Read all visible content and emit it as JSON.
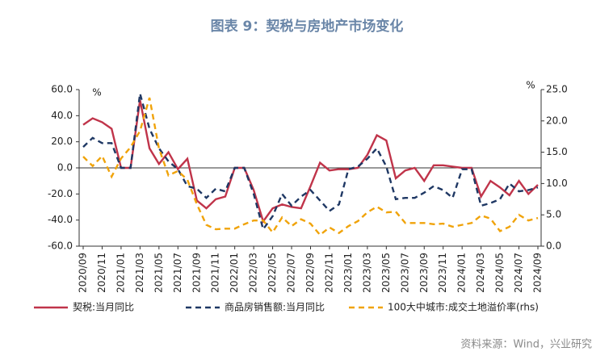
{
  "chart_data": {
    "type": "line",
    "title": "图表 9：契税与房地产市场变化",
    "y_unit": "%",
    "y2_unit": "%",
    "source": "资料来源：Wind，兴业研究",
    "categories": [
      "2020/09",
      null,
      "2020/11",
      null,
      "2021/01",
      null,
      "2021/03",
      null,
      "2021/05",
      null,
      "2021/07",
      null,
      "2021/09",
      null,
      "2021/11",
      null,
      "2022/01",
      null,
      "2022/03",
      null,
      "2022/05",
      null,
      "2022/07",
      null,
      "2022/09",
      null,
      "2022/11",
      null,
      "2023/01",
      null,
      "2023/03",
      null,
      "2023/05",
      null,
      "2023/07",
      null,
      "2023/09",
      null,
      "2023/11",
      null,
      "2024/01",
      null,
      "2024/03",
      null,
      "2024/05",
      null,
      "2024/07",
      null,
      "2024/09"
    ],
    "series": [
      {
        "name": "契税:当月同比",
        "color": "#c0344a",
        "dash": "solid",
        "values": [
          33,
          38,
          35,
          30,
          0,
          0,
          52,
          15,
          3,
          12,
          -1,
          7,
          -25,
          -31,
          -24,
          -22,
          0,
          0,
          -17,
          -41,
          -31,
          -28,
          -30,
          -31,
          -14,
          4,
          -2,
          -1,
          -1,
          0,
          10,
          25,
          21,
          -8,
          -2,
          0,
          -10,
          2,
          2,
          1,
          0,
          0,
          -22,
          -10,
          -15,
          -21,
          -10,
          -20,
          -13
        ]
      },
      {
        "name": "商品房销售额:当月同比",
        "color": "#1f3864",
        "dash": "dashed",
        "values": [
          16,
          23,
          19,
          19,
          0,
          0,
          57,
          30,
          15,
          5,
          -1,
          -14,
          -16,
          -23,
          -16,
          -18,
          0,
          0,
          -20,
          -47,
          -37,
          -20,
          -29,
          -22,
          -17,
          -25,
          -33,
          -28,
          -1,
          1,
          7,
          15,
          1,
          -24,
          -23,
          -23,
          -19,
          -14,
          -17,
          -23,
          -1,
          -1,
          -29,
          -27,
          -24,
          -12,
          -18,
          -17,
          -15
        ]
      },
      {
        "name": "100大中城市:成交土地溢价率(rhs)",
        "color": "#f0a30a",
        "dash": "dashed",
        "axis": "y2",
        "values": [
          14.3,
          12.8,
          14.4,
          11.1,
          14,
          15.8,
          18.4,
          23.7,
          15.6,
          11.3,
          12,
          10.6,
          6.7,
          3.4,
          2.7,
          2.8,
          2.8,
          3.5,
          4.1,
          4.1,
          2.2,
          4.6,
          3.2,
          4.3,
          3.6,
          1.8,
          3,
          2.1,
          3.2,
          4,
          5.4,
          6.3,
          5.4,
          5.5,
          3.7,
          3.7,
          3.7,
          3.5,
          3.6,
          3.1,
          3.4,
          3.7,
          4.9,
          4.4,
          2.4,
          3.1,
          5,
          4.1,
          4.5
        ]
      }
    ],
    "ylim": [
      -60,
      60
    ],
    "yticks": [
      {
        "value": -60,
        "label": "-60.0"
      },
      {
        "value": -40,
        "label": "-40.0"
      },
      {
        "value": -20,
        "label": "-20.0"
      },
      {
        "value": 0,
        "label": "0.0"
      },
      {
        "value": 20,
        "label": "20.0"
      },
      {
        "value": 40,
        "label": "40.0"
      },
      {
        "value": 60,
        "label": "60.0"
      }
    ],
    "y2lim": [
      0,
      25
    ],
    "y2ticks": [
      {
        "value": 0,
        "label": "0.0"
      },
      {
        "value": 5,
        "label": "5.0"
      },
      {
        "value": 10,
        "label": "10.0"
      },
      {
        "value": 15,
        "label": "15.0"
      },
      {
        "value": 20,
        "label": "20.0"
      },
      {
        "value": 25,
        "label": "25.0"
      }
    ],
    "grid": false
  }
}
